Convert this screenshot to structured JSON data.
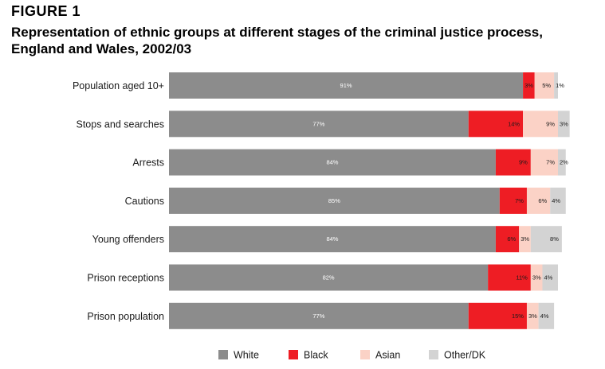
{
  "figure": {
    "label": "FIGURE 1",
    "title_line1": "Representation of ethnic groups at different stages of the criminal justice process,",
    "title_line2": "England and Wales, 2002/03"
  },
  "chart_data": {
    "type": "bar",
    "orientation": "horizontal",
    "stacked": true,
    "percent_stacked": true,
    "title": "Representation of ethnic groups at different stages of the criminal justice process, England and Wales, 2002/03",
    "xlabel": "",
    "ylabel": "",
    "xlim": [
      0,
      100
    ],
    "grid": false,
    "legend_position": "bottom",
    "categories": [
      "Population aged 10+",
      "Stops and searches",
      "Arrests",
      "Cautions",
      "Young offenders",
      "Prison receptions",
      "Prison population"
    ],
    "series": [
      {
        "name": "White",
        "color": "#8c8c8c",
        "label_color": "#ffffff",
        "values": [
          91,
          77,
          84,
          85,
          84,
          82,
          77
        ]
      },
      {
        "name": "Black",
        "color": "#ee1d24",
        "label_color": "#1a1a1a",
        "values": [
          3,
          14,
          9,
          7,
          6,
          11,
          15
        ]
      },
      {
        "name": "Asian",
        "color": "#fbd2c6",
        "label_color": "#1a1a1a",
        "values": [
          5,
          9,
          7,
          6,
          3,
          3,
          3
        ]
      },
      {
        "name": "Other/DK",
        "color": "#d3d3d3",
        "label_color": "#1a1a1a",
        "values": [
          1,
          3,
          2,
          4,
          8,
          4,
          4
        ]
      }
    ],
    "value_labels": [
      [
        "91%",
        "3%",
        "5%",
        "1%"
      ],
      [
        "77%",
        "14%",
        "9%",
        "3%"
      ],
      [
        "84%",
        "9%",
        "7%",
        "2%"
      ],
      [
        "85%",
        "7%",
        "6%",
        "4%"
      ],
      [
        "84%",
        "6%",
        "3%",
        "8%"
      ],
      [
        "82%",
        "11%",
        "3%",
        "4%"
      ],
      [
        "77%",
        "15%",
        "3%",
        "4%"
      ]
    ]
  }
}
